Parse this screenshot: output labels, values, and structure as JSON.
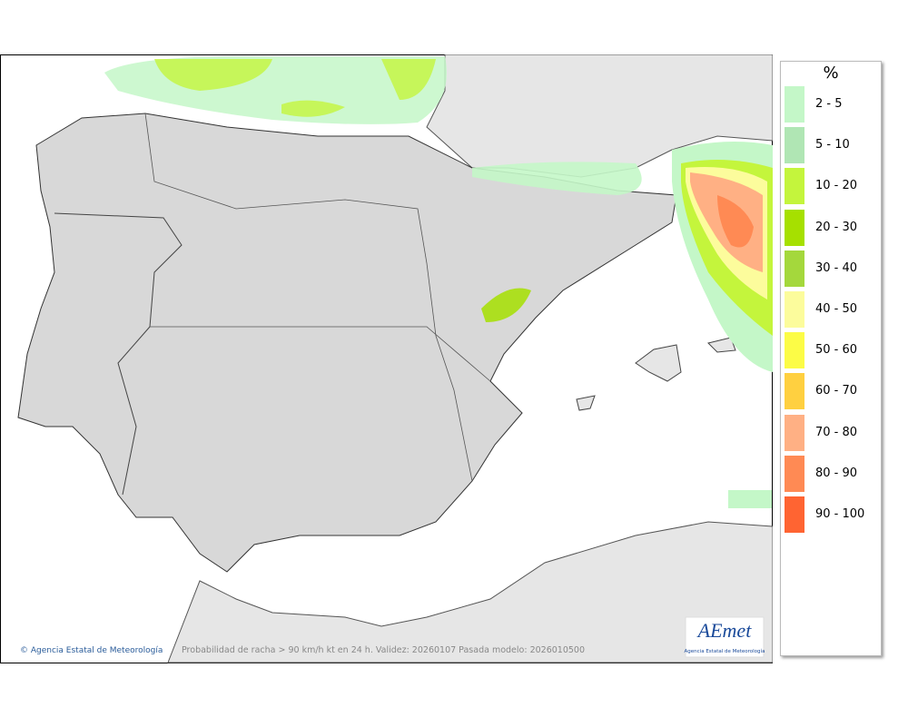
{
  "map": {
    "caption": "Probabilidad de racha > 90 km/h kt en 24 h. Validez: 20260107 Pasada modelo: 2026010500",
    "copyright": "© Agencia Estatal de Meteorología"
  },
  "logo": {
    "name": "AEmet",
    "subtitle": "Agencia Estatal de Meteorología"
  },
  "legend": {
    "title": "%",
    "items": [
      {
        "label": "2 - 5",
        "color": "#c4f7c8"
      },
      {
        "label": "5 - 10",
        "color": "#b0e6b4"
      },
      {
        "label": "10 - 20",
        "color": "#c4f53c"
      },
      {
        "label": "20 - 30",
        "color": "#a6e000"
      },
      {
        "label": "30 - 40",
        "color": "#a4d83c"
      },
      {
        "label": "40 - 50",
        "color": "#fcfc9c"
      },
      {
        "label": "50 - 60",
        "color": "#fcfc46"
      },
      {
        "label": "60 - 70",
        "color": "#ffd040"
      },
      {
        "label": "70 - 80",
        "color": "#ffb084"
      },
      {
        "label": "80 - 90",
        "color": "#ff8a54"
      },
      {
        "label": "90 - 100",
        "color": "#ff6432"
      }
    ]
  }
}
